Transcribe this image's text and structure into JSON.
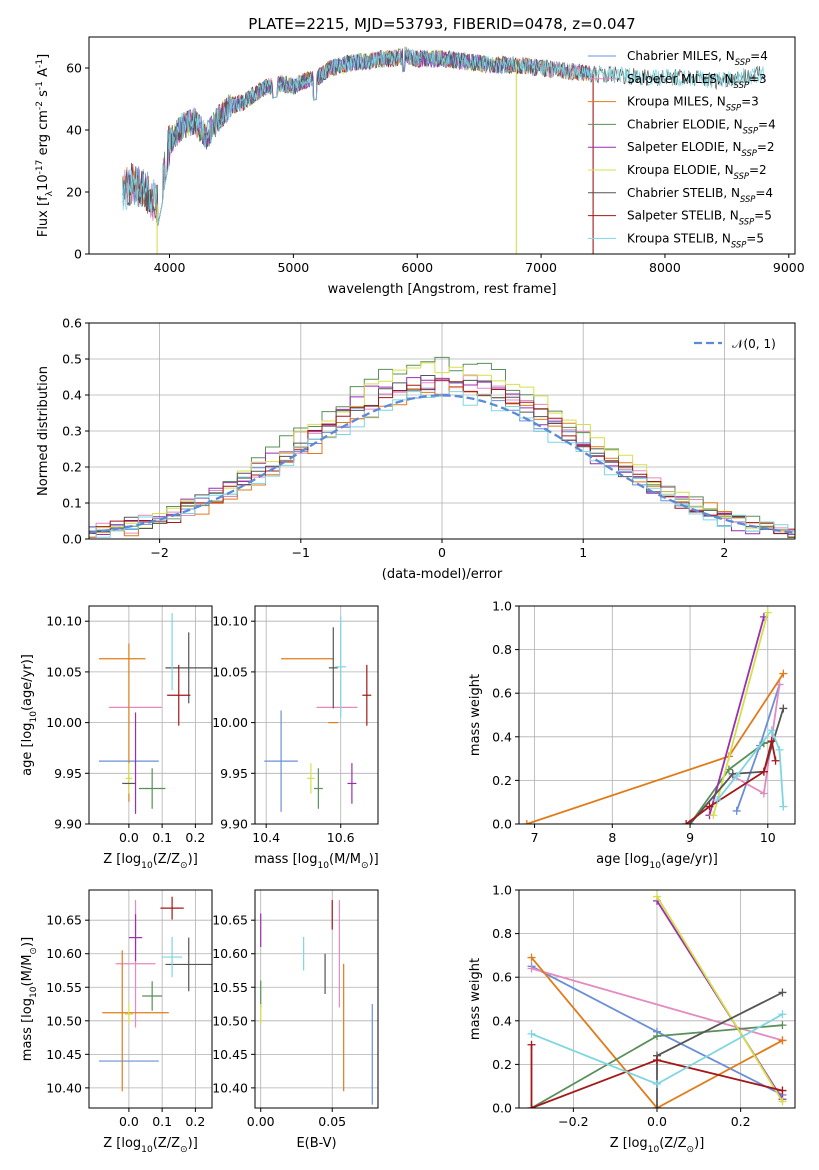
{
  "colors": {
    "Chabrier MILES": "#6a8fd8",
    "Salpeter MILES": "#e58ac0",
    "Kroupa MILES": "#e07b1a",
    "Chabrier ELODIE": "#5a8f5a",
    "Salpeter ELODIE": "#9a2fb0",
    "Kroupa ELODIE": "#d4e04a",
    "Chabrier STELIB": "#555555",
    "Salpeter STELIB": "#a31818",
    "Kroupa STELIB": "#7fd6e0",
    "gauss": "#5b8ad6"
  },
  "chart_data": [
    {
      "id": "spectrum",
      "type": "line",
      "title": "PLATE=2215, MJD=53793, FIBERID=0478, z=0.047",
      "xlabel": "wavelength [Angstrom, rest frame]",
      "ylabel": "Flux [f$_\\lambda$10$^{-17}$ erg cm$^{-2}$ s$^{-1}$ A$^{-1}$]",
      "xlim": [
        3350,
        9050
      ],
      "ylim": [
        0,
        70
      ],
      "xticks": [
        4000,
        5000,
        6000,
        7000,
        8000,
        9000
      ],
      "yticks": [
        0,
        20,
        40,
        60
      ],
      "continuum_x": [
        3620,
        3700,
        3800,
        3900,
        4000,
        4100,
        4200,
        4300,
        4400,
        4500,
        4600,
        4700,
        4800,
        4900,
        5000,
        5100,
        5200,
        5300,
        5400,
        5500,
        5600,
        5700,
        5800,
        5900,
        6000,
        6200,
        6400,
        6600,
        6800,
        7000,
        7200,
        7400,
        7600,
        7800,
        8000,
        8200,
        8400,
        8600,
        8800
      ],
      "continuum_y": [
        20,
        23,
        21,
        16,
        36,
        41,
        43,
        38,
        44,
        48,
        49,
        52,
        54,
        55,
        54,
        56,
        57,
        60,
        61,
        62,
        62,
        63,
        63,
        64,
        63,
        63,
        62,
        61,
        61,
        60,
        59,
        58,
        58,
        57,
        57,
        57,
        56,
        57,
        58
      ],
      "dropouts": [
        {
          "series": "Kroupa ELODIE",
          "x": 3900
        },
        {
          "series": "Kroupa ELODIE",
          "x": 6800
        },
        {
          "series": "Salpeter STELIB",
          "x": 7420
        }
      ],
      "legend": [
        {
          "name": "Chabrier MILES",
          "nssp": "4"
        },
        {
          "name": "Salpeter MILES",
          "nssp": "3"
        },
        {
          "name": "Kroupa MILES",
          "nssp": "3"
        },
        {
          "name": "Chabrier ELODIE",
          "nssp": "4"
        },
        {
          "name": "Salpeter ELODIE",
          "nssp": "2"
        },
        {
          "name": "Kroupa ELODIE",
          "nssp": "2"
        },
        {
          "name": "Chabrier STELIB",
          "nssp": "4"
        },
        {
          "name": "Salpeter STELIB",
          "nssp": "5"
        },
        {
          "name": "Kroupa STELIB",
          "nssp": "5"
        }
      ],
      "legend_suffix_prefix": "N",
      "legend_suffix_sub": "SSP",
      "legend_placement": "upper-right"
    },
    {
      "id": "residuals",
      "type": "line",
      "xlabel": "(data-model)/error",
      "ylabel": "Normed distribution",
      "xlim": [
        -2.5,
        2.5
      ],
      "ylim": [
        0,
        0.6
      ],
      "xticks": [
        -2,
        -1,
        0,
        1,
        2
      ],
      "yticks": [
        0.0,
        0.1,
        0.2,
        0.3,
        0.4,
        0.5,
        0.6
      ],
      "grid": true,
      "bin_width": 0.1,
      "legend_label": "𝒩(0, 1)",
      "legend_placement": "upper-right"
    },
    {
      "id": "age_vs_Z",
      "type": "scatter",
      "xlabel": "Z [log$_{10}$(Z/Z$_\\odot$)]",
      "ylabel": "age  [log$_{10}$(age/yr)]",
      "xlim": [
        -0.12,
        0.25
      ],
      "ylim": [
        9.9,
        10.115
      ],
      "xticks": [
        0.0,
        0.1,
        0.2
      ],
      "yticks": [
        9.9,
        9.95,
        10.0,
        10.05,
        10.1
      ],
      "grid": true,
      "points": [
        {
          "series": "Chabrier MILES",
          "x": 0.0,
          "y": 9.962,
          "xerr": 0.09,
          "yerr": 0.0
        },
        {
          "series": "Salpeter MILES",
          "x": 0.02,
          "y": 10.015,
          "xerr": 0.08,
          "yerr": 0.0
        },
        {
          "series": "Kroupa MILES",
          "x": -0.02,
          "y": 10.063,
          "xerr": 0.07,
          "yerr": 0.0
        },
        {
          "series": "Kroupa MILES",
          "x": 0.0,
          "y": 10.0,
          "xerr": 0.0,
          "yerr": 0.078
        },
        {
          "series": "Chabrier ELODIE",
          "x": 0.07,
          "y": 9.935,
          "xerr": 0.04,
          "yerr": 0.02
        },
        {
          "series": "Salpeter ELODIE",
          "x": 0.02,
          "y": 9.96,
          "xerr": 0.0,
          "yerr": 0.05
        },
        {
          "series": "Kroupa ELODIE",
          "x": 0.0,
          "y": 9.945,
          "xerr": 0.01,
          "yerr": 0.015
        },
        {
          "series": "Chabrier STELIB",
          "x": 0.18,
          "y": 10.054,
          "xerr": 0.07,
          "yerr": 0.035
        },
        {
          "series": "Salpeter STELIB",
          "x": 0.15,
          "y": 10.027,
          "xerr": 0.035,
          "yerr": 0.03
        },
        {
          "series": "Kroupa STELIB",
          "x": 0.13,
          "y": 10.07,
          "xerr": 0.0,
          "yerr": 0.038
        },
        {
          "series": "Chabrier STELIB",
          "x": 0.0,
          "y": 9.94,
          "xerr": 0.02,
          "yerr": 0.0
        }
      ]
    },
    {
      "id": "age_vs_mass",
      "type": "scatter",
      "xlabel": "mass [log$_{10}$(M/M$_\\odot$)]",
      "xlim": [
        10.37,
        10.7
      ],
      "ylim": [
        9.9,
        10.115
      ],
      "xticks": [
        10.4,
        10.6
      ],
      "yticks": [
        9.9,
        9.95,
        10.0,
        10.05,
        10.1
      ],
      "grid": true,
      "points": [
        {
          "series": "Chabrier MILES",
          "x": 10.44,
          "y": 9.962,
          "xerr": 0.045,
          "yerr": 0.05
        },
        {
          "series": "Salpeter MILES",
          "x": 10.59,
          "y": 10.015,
          "xerr": 0.055,
          "yerr": 0.0
        },
        {
          "series": "Kroupa MILES",
          "x": 10.51,
          "y": 10.063,
          "xerr": 0.07,
          "yerr": 0.0
        },
        {
          "series": "Chabrier ELODIE",
          "x": 10.54,
          "y": 9.935,
          "xerr": 0.012,
          "yerr": 0.02
        },
        {
          "series": "Salpeter ELODIE",
          "x": 10.63,
          "y": 9.94,
          "xerr": 0.012,
          "yerr": 0.02
        },
        {
          "series": "Kroupa ELODIE",
          "x": 10.52,
          "y": 9.945,
          "xerr": 0.01,
          "yerr": 0.015
        },
        {
          "series": "Chabrier STELIB",
          "x": 10.58,
          "y": 10.054,
          "xerr": 0.012,
          "yerr": 0.04
        },
        {
          "series": "Salpeter STELIB",
          "x": 10.67,
          "y": 10.027,
          "xerr": 0.012,
          "yerr": 0.03
        },
        {
          "series": "Kroupa STELIB",
          "x": 10.6,
          "y": 10.055,
          "xerr": 0.015,
          "yerr": 0.05
        },
        {
          "series": "Kroupa MILES",
          "x": 10.58,
          "y": 10.0,
          "xerr": 0.0,
          "yerr": 0.0
        }
      ]
    },
    {
      "id": "weight_vs_age",
      "type": "line",
      "xlabel": "age  [log$_{10}$(age/yr)]",
      "ylabel": "mass weight",
      "xlim": [
        6.8,
        10.35
      ],
      "ylim": [
        0,
        1.0
      ],
      "xticks": [
        7,
        8,
        9,
        10
      ],
      "yticks": [
        0.0,
        0.2,
        0.4,
        0.6,
        0.8,
        1.0
      ],
      "grid": true,
      "series": [
        {
          "name": "Chabrier MILES",
          "x": [
            9.6,
            9.9,
            10.15
          ],
          "y": [
            0.06,
            0.36,
            0.64
          ]
        },
        {
          "name": "Salpeter MILES",
          "x": [
            9.55,
            9.95,
            10.15
          ],
          "y": [
            0.22,
            0.14,
            0.64
          ]
        },
        {
          "name": "Kroupa MILES",
          "x": [
            6.9,
            9.5,
            10.2
          ],
          "y": [
            0.0,
            0.31,
            0.69
          ]
        },
        {
          "name": "Chabrier ELODIE",
          "x": [
            9.0,
            9.5,
            9.95,
            10.05
          ],
          "y": [
            0.0,
            0.25,
            0.37,
            0.38
          ]
        },
        {
          "name": "Salpeter ELODIE",
          "x": [
            9.25,
            9.95
          ],
          "y": [
            0.04,
            0.95
          ]
        },
        {
          "name": "Kroupa ELODIE",
          "x": [
            9.3,
            10.0
          ],
          "y": [
            0.04,
            0.97
          ]
        },
        {
          "name": "Chabrier STELIB",
          "x": [
            9.0,
            9.55,
            9.95,
            10.2
          ],
          "y": [
            0.0,
            0.23,
            0.24,
            0.53
          ]
        },
        {
          "name": "Salpeter STELIB",
          "x": [
            8.95,
            9.25,
            9.95,
            10.05,
            10.1
          ],
          "y": [
            0.0,
            0.08,
            0.24,
            0.38,
            0.29
          ]
        },
        {
          "name": "Kroupa STELIB",
          "x": [
            9.35,
            9.6,
            10.05,
            10.15,
            10.2
          ],
          "y": [
            0.11,
            0.22,
            0.43,
            0.34,
            0.08
          ]
        }
      ]
    },
    {
      "id": "mass_vs_Z",
      "type": "scatter",
      "xlabel": "Z [log$_{10}$(Z/Z$_\\odot$)]",
      "ylabel": "mass [log$_{10}$(M/M$_\\odot$)]",
      "xlim": [
        -0.12,
        0.25
      ],
      "ylim": [
        10.37,
        10.695
      ],
      "xticks": [
        0.0,
        0.1,
        0.2
      ],
      "yticks": [
        10.4,
        10.45,
        10.5,
        10.55,
        10.6,
        10.65
      ],
      "grid": true,
      "points": [
        {
          "series": "Chabrier MILES",
          "x": 0.0,
          "y": 10.44,
          "xerr": 0.09,
          "yerr": 0.0
        },
        {
          "series": "Salpeter MILES",
          "x": 0.02,
          "y": 10.585,
          "xerr": 0.06,
          "yerr": 0.095
        },
        {
          "series": "Kroupa MILES",
          "x": 0.02,
          "y": 10.512,
          "xerr": 0.1,
          "yerr": 0.0
        },
        {
          "series": "Kroupa MILES",
          "x": -0.02,
          "y": 10.5,
          "xerr": 0.0,
          "yerr": 0.105
        },
        {
          "series": "Chabrier ELODIE",
          "x": 0.07,
          "y": 10.537,
          "xerr": 0.03,
          "yerr": 0.022
        },
        {
          "series": "Salpeter ELODIE",
          "x": 0.02,
          "y": 10.624,
          "xerr": 0.02,
          "yerr": 0.035
        },
        {
          "series": "Kroupa ELODIE",
          "x": 0.0,
          "y": 10.51,
          "xerr": 0.012,
          "yerr": 0.015
        },
        {
          "series": "Chabrier STELIB",
          "x": 0.18,
          "y": 10.584,
          "xerr": 0.07,
          "yerr": 0.04
        },
        {
          "series": "Salpeter STELIB",
          "x": 0.13,
          "y": 10.668,
          "xerr": 0.035,
          "yerr": 0.017
        },
        {
          "series": "Kroupa STELIB",
          "x": 0.13,
          "y": 10.595,
          "xerr": 0.03,
          "yerr": 0.03
        }
      ]
    },
    {
      "id": "mass_vs_EBV",
      "type": "scatter",
      "xlabel": "E(B-V)",
      "xlim": [
        -0.004,
        0.082
      ],
      "ylim": [
        10.37,
        10.695
      ],
      "xticks": [
        0.0,
        0.05
      ],
      "yticks": [
        10.4,
        10.45,
        10.5,
        10.55,
        10.6,
        10.65
      ],
      "grid": true,
      "points": [
        {
          "series": "Chabrier MILES",
          "x": 0.078,
          "y": 10.45,
          "xerr": 0.0,
          "yerr": 0.075
        },
        {
          "series": "Salpeter MILES",
          "x": 0.055,
          "y": 10.6,
          "xerr": 0.0,
          "yerr": 0.08
        },
        {
          "series": "Kroupa MILES",
          "x": 0.058,
          "y": 10.49,
          "xerr": 0.0,
          "yerr": 0.095
        },
        {
          "series": "Chabrier ELODIE",
          "x": 0.0,
          "y": 10.54,
          "xerr": 0.0,
          "yerr": 0.02
        },
        {
          "series": "Salpeter ELODIE",
          "x": 0.0,
          "y": 10.635,
          "xerr": 0.0,
          "yerr": 0.025
        },
        {
          "series": "Kroupa ELODIE",
          "x": 0.0,
          "y": 10.51,
          "xerr": 0.0,
          "yerr": 0.015
        },
        {
          "series": "Chabrier STELIB",
          "x": 0.045,
          "y": 10.57,
          "xerr": 0.0,
          "yerr": 0.03
        },
        {
          "series": "Salpeter STELIB",
          "x": 0.05,
          "y": 10.658,
          "xerr": 0.0,
          "yerr": 0.022
        },
        {
          "series": "Kroupa STELIB",
          "x": 0.03,
          "y": 10.6,
          "xerr": 0.0,
          "yerr": 0.025
        }
      ]
    },
    {
      "id": "weight_vs_Z",
      "type": "line",
      "xlabel": "Z [log$_{10}$(Z/Z$_\\odot$)]",
      "ylabel": "mass weight",
      "xlim": [
        -0.33,
        0.33
      ],
      "ylim": [
        0,
        1.0
      ],
      "xticks": [
        -0.2,
        0.0,
        0.2
      ],
      "yticks": [
        0.0,
        0.2,
        0.4,
        0.6,
        0.8,
        1.0
      ],
      "grid": true,
      "series": [
        {
          "name": "Chabrier MILES",
          "x": [
            -0.3,
            0.0,
            0.3
          ],
          "y": [
            0.65,
            0.35,
            0.06
          ]
        },
        {
          "name": "Salpeter MILES",
          "x": [
            -0.3,
            0.3
          ],
          "y": [
            0.64,
            0.31
          ]
        },
        {
          "name": "Kroupa MILES",
          "x": [
            -0.3,
            0.0,
            0.3
          ],
          "y": [
            0.69,
            0.0,
            0.31
          ]
        },
        {
          "name": "Chabrier ELODIE",
          "x": [
            -0.3,
            0.0,
            0.3
          ],
          "y": [
            0.0,
            0.33,
            0.38
          ]
        },
        {
          "name": "Salpeter ELODIE",
          "x": [
            0.0,
            0.3
          ],
          "y": [
            0.95,
            0.04
          ]
        },
        {
          "name": "Kroupa ELODIE",
          "x": [
            0.0,
            0.3
          ],
          "y": [
            0.97,
            0.03
          ]
        },
        {
          "name": "Chabrier STELIB",
          "x": [
            0.0,
            0.0,
            0.3
          ],
          "y": [
            0.0,
            0.24,
            0.53
          ]
        },
        {
          "name": "Salpeter STELIB",
          "x": [
            -0.3,
            -0.3,
            0.0,
            0.3
          ],
          "y": [
            0.29,
            0.0,
            0.22,
            0.08
          ]
        },
        {
          "name": "Kroupa STELIB",
          "x": [
            -0.3,
            0.0,
            0.3
          ],
          "y": [
            0.34,
            0.11,
            0.43
          ]
        }
      ]
    }
  ]
}
